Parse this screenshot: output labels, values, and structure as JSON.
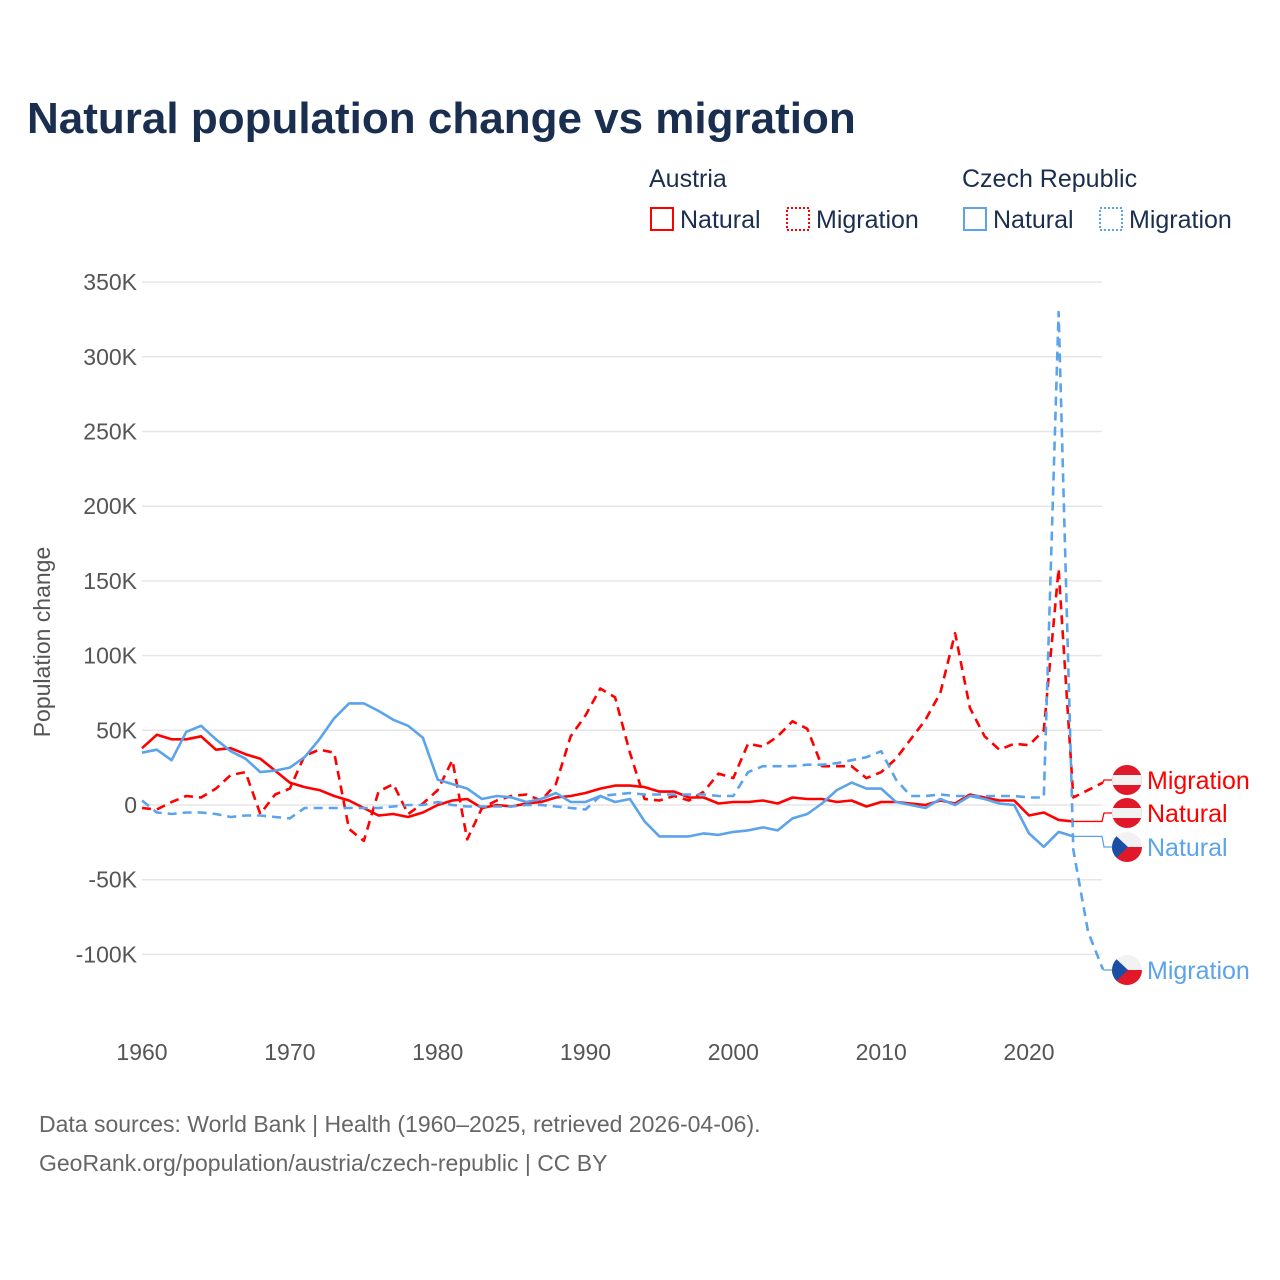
{
  "chart_data": {
    "type": "line",
    "title": "Natural population change vs migration",
    "xlabel": "",
    "ylabel": "Population change",
    "xlim": [
      1960,
      2025
    ],
    "ylim": [
      -100000,
      350000
    ],
    "x_ticks": [
      "1960",
      "1970",
      "1980",
      "1990",
      "2000",
      "2010",
      "2020"
    ],
    "y_ticks": [
      {
        "v": 350000,
        "label": "350K"
      },
      {
        "v": 300000,
        "label": "300K"
      },
      {
        "v": 250000,
        "label": "250K"
      },
      {
        "v": 200000,
        "label": "200K"
      },
      {
        "v": 150000,
        "label": "150K"
      },
      {
        "v": 100000,
        "label": "100K"
      },
      {
        "v": 50000,
        "label": "50K"
      },
      {
        "v": 0,
        "label": "0"
      },
      {
        "v": -50000,
        "label": "-50K"
      },
      {
        "v": -100000,
        "label": "-100K"
      }
    ],
    "grid": true,
    "legend_placement": "top-right",
    "legend_groups": [
      {
        "country": "Austria",
        "items": [
          "Natural",
          "Migration"
        ]
      },
      {
        "country": "Czech Republic",
        "items": [
          "Natural",
          "Migration"
        ]
      }
    ],
    "series": [
      {
        "name": "Austria Natural",
        "country": "Austria",
        "kind": "Natural",
        "color": "#ff0000",
        "dashed": false,
        "start": 1960,
        "values": [
          38,
          47,
          44,
          44,
          46,
          37,
          38,
          34,
          31,
          23,
          15,
          12,
          10,
          6,
          3,
          -2,
          -7,
          -6,
          -8,
          -5,
          0,
          3,
          4,
          -2,
          0,
          -1,
          1,
          2,
          5,
          6,
          8,
          11,
          13,
          13,
          12,
          9,
          9,
          5,
          5,
          1,
          2,
          2,
          3,
          1,
          5,
          4,
          4,
          2,
          3,
          -1,
          2,
          2,
          1,
          0,
          3,
          1,
          7,
          5,
          3,
          3,
          -7,
          -5,
          -10,
          -11
        ]
      },
      {
        "name": "Austria Migration",
        "country": "Austria",
        "kind": "Migration",
        "color": "#ff0000",
        "dashed": true,
        "start": 1960,
        "values": [
          -2,
          -3,
          2,
          6,
          5,
          11,
          20,
          22,
          -6,
          7,
          11,
          33,
          37,
          35,
          -16,
          -24,
          9,
          14,
          -6,
          1,
          10,
          30,
          -23,
          -2,
          3,
          6,
          7,
          3,
          14,
          46,
          60,
          78,
          72,
          35,
          4,
          3,
          6,
          3,
          9,
          21,
          18,
          41,
          39,
          46,
          56,
          51,
          26,
          26,
          26,
          18,
          22,
          31,
          44,
          57,
          75,
          115,
          65,
          46,
          37,
          41,
          40,
          50,
          158,
          5,
          10,
          15
        ]
      },
      {
        "name": "Czech Republic Natural",
        "country": "Czech Republic",
        "kind": "Natural",
        "color": "#5ba3ea",
        "dashed": false,
        "start": 1960,
        "values": [
          35,
          37,
          30,
          49,
          53,
          44,
          36,
          31,
          22,
          23,
          25,
          32,
          44,
          58,
          68,
          68,
          63,
          57,
          53,
          45,
          17,
          14,
          11,
          4,
          6,
          5,
          2,
          4,
          8,
          2,
          2,
          6,
          2,
          4,
          -11,
          -21,
          -21,
          -21,
          -19,
          -20,
          -18,
          -17,
          -15,
          -17,
          -9,
          -6,
          1,
          10,
          15,
          11,
          11,
          2,
          0,
          -2,
          4,
          0,
          6,
          4,
          1,
          0,
          -19,
          -28,
          -18,
          -21
        ]
      },
      {
        "name": "Czech Republic Migration",
        "country": "Czech Republic",
        "kind": "Migration",
        "color": "#5ba3ea",
        "dashed": true,
        "start": 1960,
        "values": [
          3,
          -5,
          -6,
          -5,
          -5,
          -6,
          -8,
          -7,
          -7,
          -8,
          -9,
          -2,
          -2,
          -2,
          -2,
          -2,
          -2,
          -1,
          0,
          0,
          2,
          0,
          -1,
          -1,
          -1,
          -1,
          0,
          0,
          -1,
          -2,
          -3,
          6,
          7,
          8,
          7,
          7,
          7,
          7,
          7,
          6,
          6,
          22,
          26,
          26,
          26,
          27,
          27,
          28,
          30,
          32,
          36,
          17,
          6,
          6,
          7,
          6,
          6,
          6,
          6,
          6,
          5,
          5,
          330,
          -30,
          -85,
          -110
        ]
      }
    ],
    "value_unit": "thousands",
    "end_labels": [
      "Migration",
      "Natural",
      "Natural",
      "Migration"
    ]
  },
  "source": {
    "line1": "Data sources: World Bank | Health (1960–2025, retrieved 2026-04-06).",
    "line2": "GeoRank.org/population/austria/czech-republic | CC BY"
  }
}
